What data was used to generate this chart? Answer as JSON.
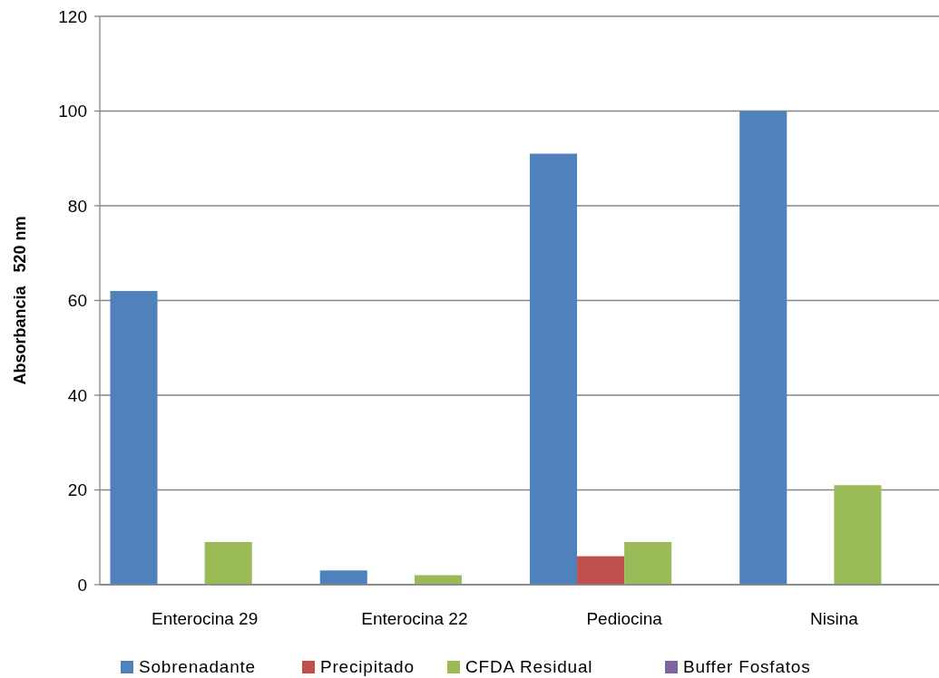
{
  "chart_data": {
    "type": "bar",
    "ylabel": "Absorbancia   520 nm",
    "categories": [
      "Enterocina 29",
      "Enterocina 22",
      "Pediocina",
      "Nisina"
    ],
    "series": [
      {
        "name": "Sobrenadante",
        "color": "#4f81bd",
        "values": [
          62,
          3,
          91,
          100
        ]
      },
      {
        "name": "Precipitado",
        "color": "#c0504d",
        "values": [
          0,
          0,
          6,
          0
        ]
      },
      {
        "name": "CFDA Residual",
        "color": "#9bbb59",
        "values": [
          9,
          2,
          9,
          21
        ]
      },
      {
        "name": "Buffer Fosfatos",
        "color": "#8064a2",
        "values": [
          0,
          0,
          0,
          0
        ]
      }
    ],
    "ylim": [
      0,
      120
    ],
    "yticks": [
      0,
      20,
      40,
      60,
      80,
      100,
      120
    ],
    "grid": "y",
    "legend": "bottom"
  }
}
